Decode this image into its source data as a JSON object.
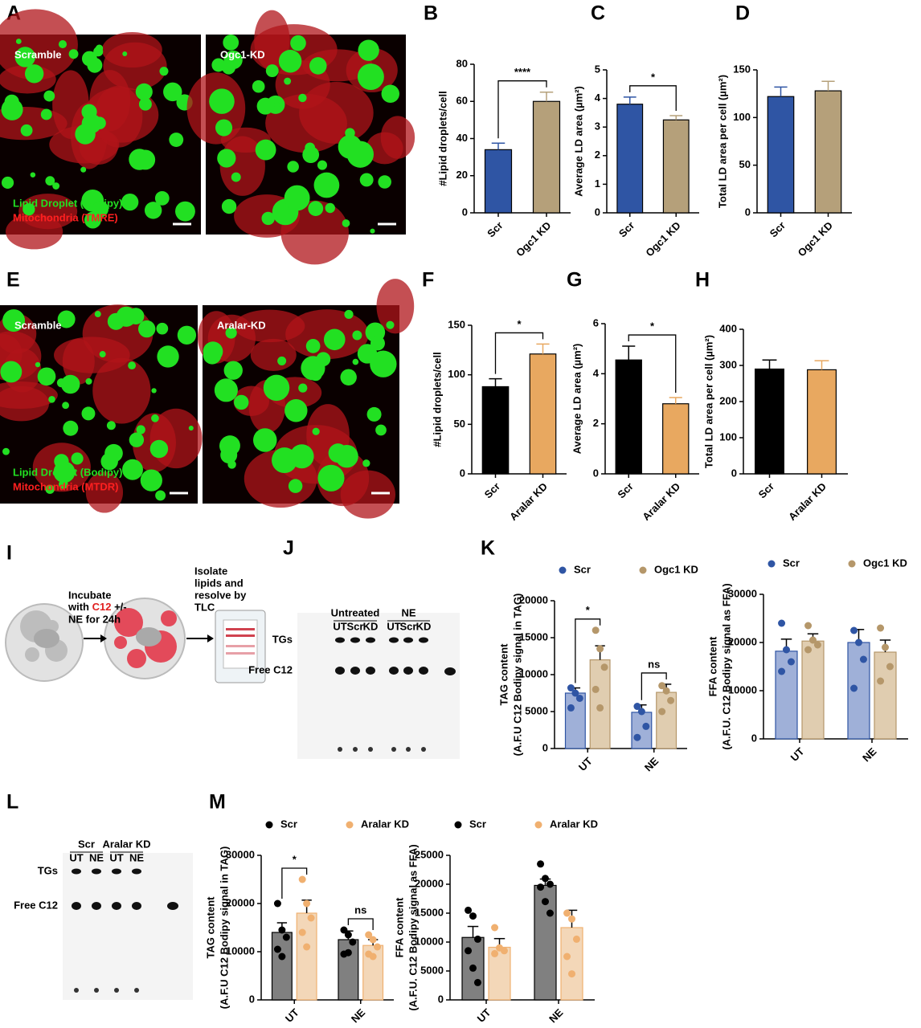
{
  "panel_letters": [
    "A",
    "B",
    "C",
    "D",
    "E",
    "F",
    "G",
    "H",
    "I",
    "J",
    "K",
    "L",
    "M"
  ],
  "images": [
    {
      "label": "Scramble",
      "legend": [
        "Lipid Droplet (Bodipy)",
        "Mitochondria (TMRE)"
      ]
    },
    {
      "label": "Ogc1-KD"
    },
    {
      "label": "Scramble",
      "legend": [
        "Lipid Droplet (Bodipy)",
        "Mitochondria (MTDR)"
      ]
    },
    {
      "label": "Aralar-KD"
    }
  ],
  "schematic": {
    "step1": [
      "Incubate",
      [
        "with ",
        "C12",
        " +/-"
      ],
      "NE for 24h"
    ],
    "step2": [
      "Isolate",
      "lipids and",
      "resolve by",
      "TLC"
    ]
  },
  "tlc_j": {
    "groups": [
      "Untreated",
      "NE"
    ],
    "lanes": [
      "UT",
      "Scr",
      "KD",
      "UT",
      "Scr",
      "KD"
    ],
    "rows": [
      "TGs",
      "Free C12"
    ]
  },
  "tlc_l": {
    "groups": [
      "Scr",
      "Aralar KD"
    ],
    "lanes": [
      "UT",
      "NE",
      "UT",
      "NE"
    ],
    "rows": [
      "TGs",
      "Free C12"
    ]
  },
  "chart_data": [
    {
      "type": "bar",
      "ylabel": "#Lipid droplets/cell",
      "categories": [
        "Scr",
        "Ogc1 KD"
      ],
      "series": [
        {
          "colors": [
            "#2f55a4",
            "#b5a07a"
          ],
          "values": [
            34,
            60
          ],
          "errors": [
            3.5,
            5
          ]
        }
      ],
      "ylim": [
        0,
        80
      ],
      "yticks": [
        0,
        20,
        40,
        60,
        80
      ],
      "significance": [
        "****"
      ]
    },
    {
      "type": "bar",
      "ylabel": "Average LD area (µm²)",
      "categories": [
        "Scr",
        "Ogc1 KD"
      ],
      "series": [
        {
          "colors": [
            "#2f55a4",
            "#b5a07a"
          ],
          "values": [
            3.8,
            3.25
          ],
          "errors": [
            0.25,
            0.15
          ]
        }
      ],
      "ylim": [
        0,
        5
      ],
      "yticks": [
        0,
        1,
        2,
        3,
        4,
        5
      ],
      "significance": [
        "*"
      ]
    },
    {
      "type": "bar",
      "ylabel": "Total LD area per cell (µm²)",
      "categories": [
        "Scr",
        "Ogc1 KD"
      ],
      "series": [
        {
          "colors": [
            "#2f55a4",
            "#b5a07a"
          ],
          "values": [
            122,
            128
          ],
          "errors": [
            10,
            10
          ]
        }
      ],
      "ylim": [
        0,
        150
      ],
      "yticks": [
        0,
        50,
        100,
        150
      ]
    },
    {
      "type": "bar",
      "ylabel": "#Lipid droplets/cell",
      "categories": [
        "Scr",
        "Aralar KD"
      ],
      "series": [
        {
          "colors": [
            "#000000",
            "#e8a860"
          ],
          "values": [
            88,
            121
          ],
          "errors": [
            8,
            10
          ]
        }
      ],
      "ylim": [
        0,
        150
      ],
      "yticks": [
        0,
        50,
        100,
        150
      ],
      "significance": [
        "*"
      ]
    },
    {
      "type": "bar",
      "ylabel": "Average LD area (µm²)",
      "categories": [
        "Scr",
        "Aralar KD"
      ],
      "series": [
        {
          "colors": [
            "#000000",
            "#e8a860"
          ],
          "values": [
            4.55,
            2.8
          ],
          "errors": [
            0.55,
            0.25
          ]
        }
      ],
      "ylim": [
        0,
        6
      ],
      "yticks": [
        0,
        2,
        4,
        6
      ],
      "significance": [
        "*"
      ]
    },
    {
      "type": "bar",
      "ylabel": "Total LD area per cell (µm²)",
      "categories": [
        "Scr",
        "Aralar KD"
      ],
      "series": [
        {
          "colors": [
            "#000000",
            "#e8a860"
          ],
          "values": [
            290,
            288
          ],
          "errors": [
            25,
            25
          ]
        }
      ],
      "ylim": [
        0,
        400
      ],
      "yticks": [
        0,
        100,
        200,
        300,
        400
      ]
    },
    {
      "type": "bar",
      "ylabel": [
        "TAG content",
        "(A.F.U C12 Bodipy signal in TAG)"
      ],
      "categories": [
        "UT",
        "NE"
      ],
      "series": [
        {
          "name": "Scr",
          "color": "#2f55a4",
          "fill": "#9fb0d8",
          "values": [
            7500,
            4900
          ],
          "errors": [
            700,
            1000
          ],
          "points": [
            [
              8200,
              7500,
              6800,
              5500
            ],
            [
              5700,
              5000,
              3000,
              1500
            ]
          ]
        },
        {
          "name": "Ogc1 KD",
          "color": "#b5976a",
          "fill": "#e0cdb0",
          "values": [
            12000,
            7600
          ],
          "errors": [
            1900,
            1100
          ],
          "points": [
            [
              16000,
              13500,
              11000,
              8000,
              5500
            ],
            [
              8500,
              7800,
              6500,
              5000
            ]
          ]
        }
      ],
      "ylim": [
        0,
        20000
      ],
      "yticks": [
        0,
        5000,
        10000,
        15000,
        20000
      ],
      "significance": [
        "*",
        "ns"
      ]
    },
    {
      "type": "bar",
      "ylabel": [
        "FFA content",
        "(A.F.U. C12 Bodipy signal as FFA)"
      ],
      "categories": [
        "UT",
        "NE"
      ],
      "series": [
        {
          "name": "Scr",
          "color": "#2f55a4",
          "fill": "#9fb0d8",
          "values": [
            18200,
            20000
          ],
          "errors": [
            2500,
            2700
          ],
          "points": [
            [
              24000,
              18500,
              16000,
              14000
            ],
            [
              22500,
              20000,
              16500,
              10500
            ]
          ]
        },
        {
          "name": "Ogc1 KD",
          "color": "#b5976a",
          "fill": "#e0cdb0",
          "values": [
            20300,
            18000
          ],
          "errors": [
            1500,
            2500
          ],
          "points": [
            [
              23500,
              20500,
              19500,
              18500
            ],
            [
              23000,
              19000,
              15000,
              12000
            ]
          ]
        }
      ],
      "ylim": [
        0,
        30000
      ],
      "yticks": [
        0,
        10000,
        20000,
        30000
      ]
    },
    {
      "type": "bar",
      "ylabel": [
        "TAG content",
        "(A.F.U C12 Bodipy signal in TAG)"
      ],
      "categories": [
        "UT",
        "NE"
      ],
      "series": [
        {
          "name": "Scr",
          "color": "#000000",
          "fill": "#808080",
          "values": [
            14000,
            12500
          ],
          "errors": [
            2000,
            1800
          ],
          "points": [
            [
              20000,
              14500,
              13000,
              10500,
              9000
            ],
            [
              14500,
              13500,
              12000,
              9500,
              9800
            ]
          ]
        },
        {
          "name": "Aralar KD",
          "color": "#f0b070",
          "fill": "#f3d7b8",
          "values": [
            18000,
            11300
          ],
          "errors": [
            2700,
            1200
          ],
          "points": [
            [
              25000,
              20000,
              17000,
              14000,
              11000
            ],
            [
              13500,
              12500,
              11000,
              9500,
              9000
            ]
          ]
        }
      ],
      "ylim": [
        0,
        30000
      ],
      "yticks": [
        0,
        10000,
        20000,
        30000
      ],
      "significance": [
        "*",
        "ns"
      ]
    },
    {
      "type": "bar",
      "ylabel": [
        "FFA content",
        "(A.F.U. C12 Bodipy signal as FFA)"
      ],
      "categories": [
        "UT",
        "NE"
      ],
      "series": [
        {
          "name": "Scr",
          "color": "#000000",
          "fill": "#808080",
          "values": [
            10800,
            19800
          ],
          "errors": [
            1900,
            1100
          ],
          "points": [
            [
              15500,
              14500,
              10500,
              8500,
              5500,
              3000
            ],
            [
              23500,
              21000,
              20000,
              19500,
              17000,
              15000
            ]
          ]
        },
        {
          "name": "Aralar KD",
          "color": "#f0b070",
          "fill": "#f3d7b8",
          "values": [
            9100,
            12500
          ],
          "errors": [
            1500,
            3000
          ],
          "points": [
            [
              12500,
              9000,
              8500,
              8000
            ],
            [
              15000,
              14000,
              10500,
              7500,
              4500
            ]
          ]
        }
      ],
      "ylim": [
        0,
        25000
      ],
      "yticks": [
        0,
        5000,
        10000,
        15000,
        20000,
        25000
      ]
    }
  ]
}
